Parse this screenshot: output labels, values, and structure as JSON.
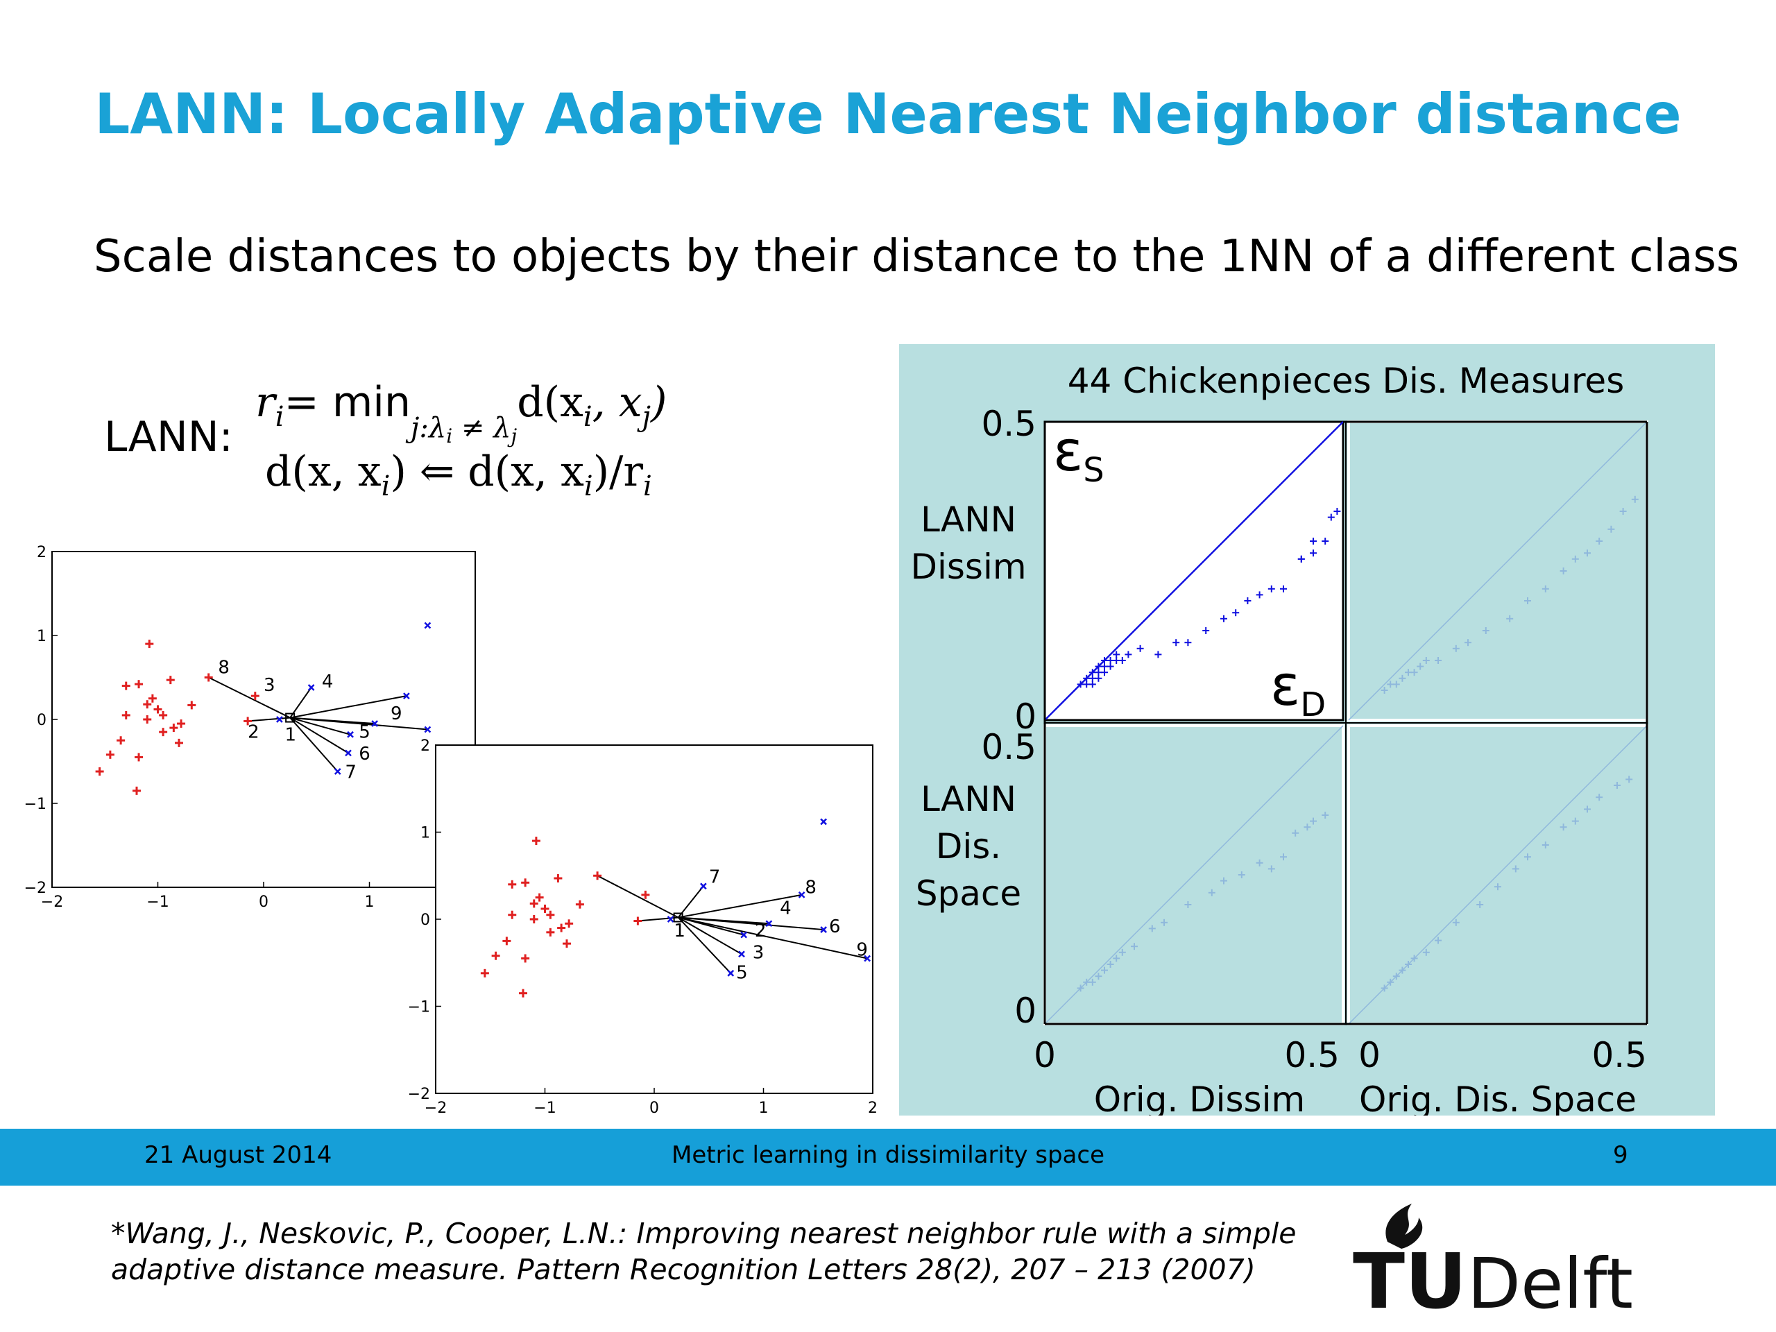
{
  "slide": {
    "title": "LANN: Locally Adaptive Nearest Neighbor distance",
    "subtitle": "Scale distances to objects by their distance to the 1NN of a different class"
  },
  "formula": {
    "label": "LANN:",
    "line1_lhs": "r",
    "line1_sub": "i",
    "line1_op": "= min",
    "line1_constraint": "j:λ",
    "line1_constraint_rest": "≠ λ",
    "line1_rhs": "d(x",
    "line2": "d(x, x",
    "line2_rhs": ") ⇐ d(x, x",
    "line2_tail": ")/r"
  },
  "footer": {
    "date": "21 August 2014",
    "center": "Metric learning in dissimilarity space",
    "page": "9"
  },
  "citation": {
    "line1": "*Wang, J., Neskovic, P., Cooper, L.N.: Improving nearest neighbor rule with a simple",
    "line2": "adaptive distance measure. Pattern Recognition Letters 28(2), 207 – 213 (2007)"
  },
  "logo": {
    "text_tu": "TU",
    "text_delft": "Delft"
  },
  "colors": {
    "title": "#1aa2d6",
    "footer": "#169fd8",
    "panel": "#b8dfe0",
    "red": "#e02020",
    "blue": "#1010e0"
  },
  "chart_data": [
    {
      "type": "scatter",
      "name": "scatter-before",
      "xlim": [
        -2,
        2
      ],
      "ylim": [
        -2,
        2
      ],
      "xticks": [
        "−2",
        "−1",
        "0",
        "1"
      ],
      "yticks": [
        "2",
        "1",
        "0",
        "−1",
        "−2"
      ],
      "series": [
        {
          "color": "#e02020",
          "points": [
            [
              -1.08,
              0.9
            ],
            [
              -1.3,
              0.4
            ],
            [
              -1.18,
              0.42
            ],
            [
              -1.05,
              0.25
            ],
            [
              -1.0,
              0.12
            ],
            [
              -0.88,
              0.47
            ],
            [
              -1.1,
              0.18
            ],
            [
              -0.95,
              0.05
            ],
            [
              -0.85,
              -0.1
            ],
            [
              -1.1,
              0.0
            ],
            [
              -1.3,
              0.05
            ],
            [
              -1.35,
              -0.25
            ],
            [
              -1.18,
              -0.45
            ],
            [
              -1.45,
              -0.42
            ],
            [
              -1.55,
              -0.62
            ],
            [
              -1.2,
              -0.85
            ],
            [
              -0.78,
              -0.05
            ],
            [
              -0.68,
              0.17
            ],
            [
              -0.52,
              0.5
            ],
            [
              -0.08,
              0.28
            ],
            [
              -0.15,
              -0.02
            ],
            [
              -0.95,
              -0.15
            ],
            [
              -0.8,
              -0.28
            ]
          ]
        },
        {
          "color": "#1010e0",
          "points": [
            [
              1.55,
              1.12
            ],
            [
              0.45,
              0.38
            ],
            [
              1.35,
              0.28
            ],
            [
              1.05,
              -0.05
            ],
            [
              0.82,
              -0.18
            ],
            [
              0.8,
              -0.4
            ],
            [
              0.7,
              -0.62
            ],
            [
              0.15,
              0.0
            ],
            [
              1.55,
              -0.12
            ]
          ]
        }
      ],
      "query": [
        0.25,
        0.02
      ],
      "neighbor_labels": [
        {
          "label": "8",
          "x": -0.43,
          "y": 0.55
        },
        {
          "label": "3",
          "x": 0.0,
          "y": 0.34
        },
        {
          "label": "4",
          "x": 0.55,
          "y": 0.38
        },
        {
          "label": "2",
          "x": -0.15,
          "y": -0.22
        },
        {
          "label": "1",
          "x": 0.2,
          "y": -0.25
        },
        {
          "label": "5",
          "x": 0.9,
          "y": -0.22
        },
        {
          "label": "9",
          "x": 1.2,
          "y": 0.0
        },
        {
          "label": "6",
          "x": 0.9,
          "y": -0.48
        },
        {
          "label": "7",
          "x": 0.77,
          "y": -0.7
        }
      ]
    },
    {
      "type": "scatter",
      "name": "scatter-after",
      "xlim": [
        -2,
        2
      ],
      "ylim": [
        -2,
        2
      ],
      "xticks": [
        "−2",
        "−1",
        "0",
        "1",
        "2"
      ],
      "yticks": [
        "2",
        "1",
        "0",
        "−1",
        "−2"
      ],
      "series": [
        {
          "color": "#e02020",
          "points": [
            [
              -1.08,
              0.9
            ],
            [
              -1.3,
              0.4
            ],
            [
              -1.18,
              0.42
            ],
            [
              -1.05,
              0.25
            ],
            [
              -1.0,
              0.12
            ],
            [
              -0.88,
              0.47
            ],
            [
              -1.1,
              0.18
            ],
            [
              -0.95,
              0.05
            ],
            [
              -0.85,
              -0.1
            ],
            [
              -1.1,
              0.0
            ],
            [
              -1.3,
              0.05
            ],
            [
              -1.35,
              -0.25
            ],
            [
              -1.18,
              -0.45
            ],
            [
              -1.45,
              -0.42
            ],
            [
              -1.55,
              -0.62
            ],
            [
              -1.2,
              -0.85
            ],
            [
              -0.78,
              -0.05
            ],
            [
              -0.68,
              0.17
            ],
            [
              -0.52,
              0.5
            ],
            [
              -0.08,
              0.28
            ],
            [
              -0.15,
              -0.02
            ],
            [
              -0.95,
              -0.15
            ],
            [
              -0.8,
              -0.28
            ]
          ]
        },
        {
          "color": "#1010e0",
          "points": [
            [
              1.55,
              1.12
            ],
            [
              0.45,
              0.38
            ],
            [
              1.35,
              0.28
            ],
            [
              1.05,
              -0.05
            ],
            [
              0.82,
              -0.18
            ],
            [
              0.8,
              -0.4
            ],
            [
              0.7,
              -0.62
            ],
            [
              0.15,
              0.0
            ],
            [
              1.55,
              -0.12
            ],
            [
              1.95,
              -0.45
            ]
          ]
        }
      ],
      "query": [
        0.22,
        0.02
      ],
      "neighbor_labels": [
        {
          "label": "7",
          "x": 0.5,
          "y": 0.42
        },
        {
          "label": "8",
          "x": 1.38,
          "y": 0.3
        },
        {
          "label": "4",
          "x": 1.15,
          "y": 0.06
        },
        {
          "label": "1",
          "x": 0.18,
          "y": -0.2
        },
        {
          "label": "2",
          "x": 0.92,
          "y": -0.2
        },
        {
          "label": "6",
          "x": 1.6,
          "y": -0.15
        },
        {
          "label": "3",
          "x": 0.9,
          "y": -0.45
        },
        {
          "label": "9",
          "x": 1.85,
          "y": -0.42
        },
        {
          "label": "5",
          "x": 0.75,
          "y": -0.68
        }
      ]
    },
    {
      "type": "scatter",
      "name": "scatter-matrix",
      "title": "44 Chickenpieces Dis. Measures",
      "ylabel_top": [
        "LANN",
        "Dissim"
      ],
      "ylabel_bottom": [
        "LANN",
        "Dis.",
        "Space"
      ],
      "xlabel_left": "Orig. Dissim",
      "xlabel_right": "Orig. Dis. Space",
      "tick_zero": "0",
      "tick_half": "0.5",
      "epsilon_s": "ε",
      "epsilon_s_sub": "S",
      "epsilon_d": "ε",
      "epsilon_d_sub": "D",
      "xlim": [
        0,
        0.5
      ],
      "ylim": [
        0,
        0.5
      ],
      "panels": [
        {
          "position": "top-left",
          "highlight": true,
          "points": [
            [
              0.06,
              0.06
            ],
            [
              0.07,
              0.06
            ],
            [
              0.07,
              0.07
            ],
            [
              0.08,
              0.07
            ],
            [
              0.08,
              0.08
            ],
            [
              0.09,
              0.08
            ],
            [
              0.09,
              0.09
            ],
            [
              0.1,
              0.09
            ],
            [
              0.1,
              0.1
            ],
            [
              0.11,
              0.09
            ],
            [
              0.11,
              0.1
            ],
            [
              0.12,
              0.1
            ],
            [
              0.12,
              0.11
            ],
            [
              0.13,
              0.1
            ],
            [
              0.1,
              0.08
            ],
            [
              0.09,
              0.07
            ],
            [
              0.08,
              0.06
            ],
            [
              0.14,
              0.11
            ],
            [
              0.16,
              0.12
            ],
            [
              0.19,
              0.11
            ],
            [
              0.22,
              0.13
            ],
            [
              0.24,
              0.13
            ],
            [
              0.27,
              0.15
            ],
            [
              0.3,
              0.17
            ],
            [
              0.32,
              0.18
            ],
            [
              0.34,
              0.2
            ],
            [
              0.36,
              0.21
            ],
            [
              0.38,
              0.22
            ],
            [
              0.4,
              0.22
            ],
            [
              0.43,
              0.27
            ],
            [
              0.43,
              0.27
            ],
            [
              0.45,
              0.28
            ],
            [
              0.47,
              0.3
            ],
            [
              0.48,
              0.34
            ],
            [
              0.49,
              0.35
            ],
            [
              0.45,
              0.3
            ]
          ]
        },
        {
          "position": "top-right",
          "highlight": false,
          "points": [
            [
              0.06,
              0.05
            ],
            [
              0.07,
              0.06
            ],
            [
              0.08,
              0.06
            ],
            [
              0.09,
              0.07
            ],
            [
              0.1,
              0.08
            ],
            [
              0.11,
              0.08
            ],
            [
              0.12,
              0.09
            ],
            [
              0.13,
              0.1
            ],
            [
              0.15,
              0.1
            ],
            [
              0.18,
              0.12
            ],
            [
              0.2,
              0.13
            ],
            [
              0.23,
              0.15
            ],
            [
              0.27,
              0.17
            ],
            [
              0.3,
              0.2
            ],
            [
              0.33,
              0.22
            ],
            [
              0.36,
              0.25
            ],
            [
              0.38,
              0.27
            ],
            [
              0.4,
              0.28
            ],
            [
              0.42,
              0.3
            ],
            [
              0.44,
              0.32
            ],
            [
              0.46,
              0.35
            ],
            [
              0.48,
              0.37
            ]
          ]
        },
        {
          "position": "bottom-left",
          "highlight": false,
          "points": [
            [
              0.06,
              0.06
            ],
            [
              0.07,
              0.07
            ],
            [
              0.08,
              0.07
            ],
            [
              0.09,
              0.08
            ],
            [
              0.1,
              0.09
            ],
            [
              0.11,
              0.1
            ],
            [
              0.12,
              0.11
            ],
            [
              0.13,
              0.12
            ],
            [
              0.15,
              0.13
            ],
            [
              0.18,
              0.16
            ],
            [
              0.2,
              0.17
            ],
            [
              0.24,
              0.2
            ],
            [
              0.28,
              0.22
            ],
            [
              0.3,
              0.24
            ],
            [
              0.33,
              0.25
            ],
            [
              0.36,
              0.27
            ],
            [
              0.38,
              0.26
            ],
            [
              0.4,
              0.28
            ],
            [
              0.42,
              0.32
            ],
            [
              0.44,
              0.33
            ],
            [
              0.45,
              0.34
            ],
            [
              0.47,
              0.35
            ]
          ]
        },
        {
          "position": "bottom-right",
          "highlight": false,
          "points": [
            [
              0.06,
              0.06
            ],
            [
              0.07,
              0.07
            ],
            [
              0.08,
              0.08
            ],
            [
              0.09,
              0.09
            ],
            [
              0.1,
              0.1
            ],
            [
              0.11,
              0.11
            ],
            [
              0.13,
              0.12
            ],
            [
              0.15,
              0.14
            ],
            [
              0.18,
              0.17
            ],
            [
              0.22,
              0.2
            ],
            [
              0.25,
              0.23
            ],
            [
              0.28,
              0.26
            ],
            [
              0.3,
              0.28
            ],
            [
              0.33,
              0.3
            ],
            [
              0.36,
              0.33
            ],
            [
              0.38,
              0.34
            ],
            [
              0.4,
              0.36
            ],
            [
              0.42,
              0.38
            ],
            [
              0.45,
              0.4
            ],
            [
              0.47,
              0.41
            ]
          ]
        }
      ]
    }
  ]
}
